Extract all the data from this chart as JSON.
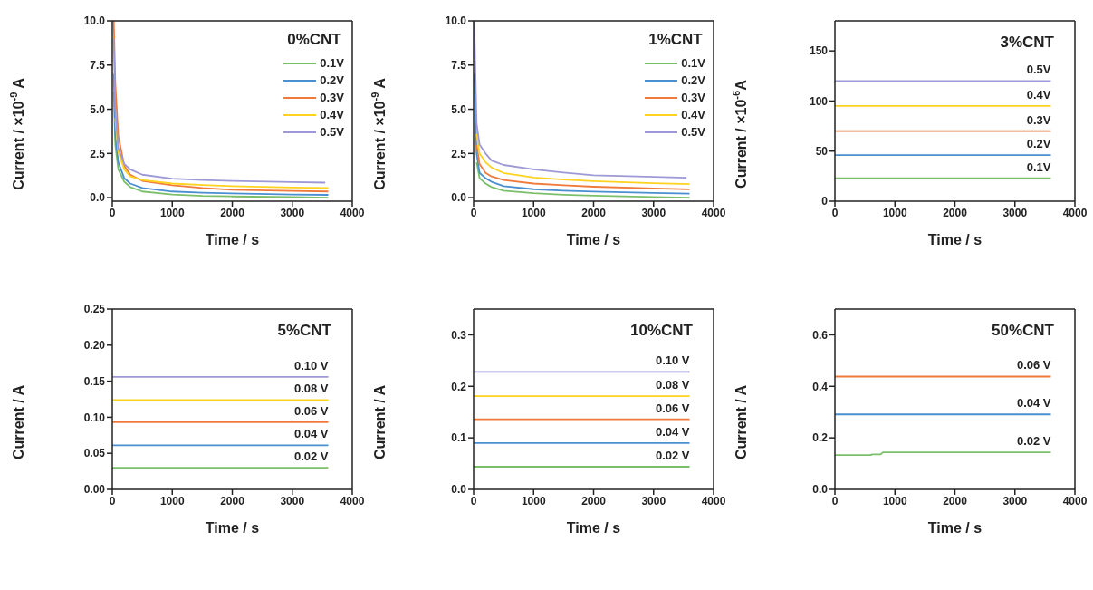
{
  "chart_data": [
    {
      "type": "line",
      "legend_title": "0%CNT",
      "xlabel": "Time / s",
      "ylabel": "Current / ×10$^{-9}$ A",
      "xlim": [
        0,
        4000
      ],
      "xticks": [
        0,
        1000,
        2000,
        3000,
        4000
      ],
      "ylim": [
        -0.2,
        10
      ],
      "yticks": [
        {
          "value": 0,
          "label": "0.0"
        },
        2.5,
        {
          "value": 5,
          "label": "5.0"
        },
        7.5,
        {
          "value": 10,
          "label": "10.0"
        }
      ],
      "grid": false,
      "legend": "top right",
      "marker": "none",
      "series": [
        {
          "name": "0.1V",
          "color": "#7cbf6a",
          "x": [
            25,
            50,
            100,
            200,
            300,
            500,
            1000,
            1500,
            2000,
            3000,
            3600
          ],
          "values": [
            6.0,
            3.0,
            1.6,
            0.9,
            0.6,
            0.35,
            0.18,
            0.1,
            0.07,
            0.03,
            0.0
          ]
        },
        {
          "name": "0.2V",
          "color": "#4a8fd0",
          "x": [
            25,
            50,
            100,
            200,
            300,
            500,
            1000,
            1500,
            2000,
            3000,
            3600
          ],
          "values": [
            7.0,
            3.5,
            2.0,
            1.1,
            0.8,
            0.55,
            0.35,
            0.28,
            0.24,
            0.18,
            0.16
          ]
        },
        {
          "name": "0.3V",
          "color": "#f07a3c",
          "x": [
            25,
            50,
            100,
            200,
            300,
            500,
            1000,
            1500,
            2000,
            3000,
            3600
          ],
          "values": [
            10.0,
            6.5,
            3.5,
            1.8,
            1.3,
            0.95,
            0.7,
            0.55,
            0.45,
            0.38,
            0.35
          ]
        },
        {
          "name": "0.4V",
          "color": "#ffd21f",
          "x": [
            50,
            100,
            200,
            300,
            500,
            1000,
            1500,
            2000,
            3000,
            3600
          ],
          "values": [
            4.5,
            2.6,
            1.6,
            1.2,
            1.0,
            0.8,
            0.72,
            0.65,
            0.58,
            0.55
          ]
        },
        {
          "name": "0.5V",
          "color": "#9d99d6",
          "x": [
            25,
            50,
            100,
            200,
            300,
            500,
            1000,
            1500,
            2000,
            3000,
            3550
          ],
          "values": [
            9.0,
            5.0,
            2.8,
            1.9,
            1.6,
            1.3,
            1.08,
            1.0,
            0.95,
            0.88,
            0.85
          ]
        }
      ]
    },
    {
      "type": "line",
      "legend_title": "1%CNT",
      "xlabel": "Time / s",
      "ylabel": "Current / ×10$^{-9}$ A",
      "xlim": [
        0,
        4000
      ],
      "xticks": [
        0,
        1000,
        2000,
        3000,
        4000
      ],
      "ylim": [
        -0.2,
        10
      ],
      "yticks": [
        {
          "value": 0,
          "label": "0.0"
        },
        2.5,
        {
          "value": 5,
          "label": "5.0"
        },
        7.5,
        {
          "value": 10,
          "label": "10.0"
        }
      ],
      "grid": false,
      "legend": "top right",
      "marker": "none",
      "series": [
        {
          "name": "0.1V",
          "color": "#7cbf6a",
          "x": [
            50,
            100,
            200,
            300,
            500,
            1000,
            1500,
            2000,
            3000,
            3600
          ],
          "values": [
            2.0,
            1.1,
            0.8,
            0.6,
            0.4,
            0.25,
            0.17,
            0.11,
            0.04,
            0.0
          ]
        },
        {
          "name": "0.2V",
          "color": "#4a8fd0",
          "x": [
            10,
            50,
            100,
            200,
            300,
            500,
            1000,
            1500,
            2000,
            3000,
            3600
          ],
          "values": [
            7.0,
            2.5,
            1.4,
            1.1,
            0.9,
            0.65,
            0.48,
            0.4,
            0.34,
            0.27,
            0.23
          ]
        },
        {
          "name": "0.3V",
          "color": "#f07a3c",
          "x": [
            50,
            100,
            200,
            300,
            500,
            1000,
            1500,
            2000,
            3000,
            3600
          ],
          "values": [
            3.0,
            1.9,
            1.4,
            1.2,
            1.0,
            0.8,
            0.7,
            0.62,
            0.52,
            0.47
          ]
        },
        {
          "name": "0.4V",
          "color": "#ffd21f",
          "x": [
            50,
            100,
            200,
            300,
            500,
            1000,
            1500,
            2000,
            3000,
            3600
          ],
          "values": [
            3.6,
            2.5,
            2.0,
            1.7,
            1.4,
            1.14,
            1.02,
            0.93,
            0.82,
            0.77
          ]
        },
        {
          "name": "0.5V",
          "color": "#9d99d6",
          "x": [
            10,
            50,
            100,
            200,
            300,
            500,
            1000,
            1500,
            2000,
            3000,
            3550
          ],
          "values": [
            10.0,
            4.2,
            3.0,
            2.5,
            2.1,
            1.85,
            1.6,
            1.42,
            1.27,
            1.18,
            1.13
          ]
        }
      ]
    },
    {
      "type": "line",
      "title": "3%CNT",
      "xlabel": "Time / s",
      "ylabel": "Current / ×10$^{-6}$A",
      "xlim": [
        0,
        4000
      ],
      "xticks": [
        0,
        1000,
        2000,
        3000,
        4000
      ],
      "ylim": [
        0,
        180
      ],
      "yticks": [
        0,
        50,
        100,
        150
      ],
      "grid": false,
      "marker": "none",
      "series": [
        {
          "name": "0.1V",
          "color": "#7cbf6a",
          "x": [
            0,
            1800,
            3600
          ],
          "values": [
            23,
            23,
            23
          ]
        },
        {
          "name": "0.2V",
          "color": "#4a8fd0",
          "x": [
            0,
            1800,
            3600
          ],
          "values": [
            46,
            46,
            46
          ]
        },
        {
          "name": "0.3V",
          "color": "#f07a3c",
          "x": [
            0,
            1800,
            3600
          ],
          "values": [
            70,
            70,
            70
          ]
        },
        {
          "name": "0.4V",
          "color": "#ffd21f",
          "x": [
            0,
            1800,
            3600
          ],
          "values": [
            95,
            95,
            95
          ]
        },
        {
          "name": "0.5V",
          "color": "#9d99d6",
          "x": [
            0,
            1800,
            3600
          ],
          "values": [
            120,
            120,
            120
          ]
        }
      ]
    },
    {
      "type": "line",
      "title": "5%CNT",
      "xlabel": "Time / s",
      "ylabel": "Current / A",
      "xlim": [
        0,
        4000
      ],
      "xticks": [
        0,
        1000,
        2000,
        3000,
        4000
      ],
      "ylim": [
        0,
        0.25
      ],
      "yticks": [
        {
          "value": 0,
          "label": "0.00"
        },
        0.05,
        {
          "value": 0.1,
          "label": "0.10"
        },
        0.15,
        {
          "value": 0.2,
          "label": "0.20"
        },
        0.25
      ],
      "grid": false,
      "marker": "none",
      "series": [
        {
          "name": "0.02 V",
          "color": "#7cbf6a",
          "x": [
            0,
            1800,
            3600
          ],
          "values": [
            0.03,
            0.03,
            0.03
          ]
        },
        {
          "name": "0.04 V",
          "color": "#4a8fd0",
          "x": [
            0,
            1800,
            3600
          ],
          "values": [
            0.061,
            0.061,
            0.061
          ]
        },
        {
          "name": "0.06 V",
          "color": "#f07a3c",
          "x": [
            0,
            1800,
            3600
          ],
          "values": [
            0.093,
            0.093,
            0.093
          ]
        },
        {
          "name": "0.08 V",
          "color": "#ffd21f",
          "x": [
            0,
            1800,
            3600
          ],
          "values": [
            0.124,
            0.124,
            0.124
          ]
        },
        {
          "name": "0.10 V",
          "color": "#9d99d6",
          "x": [
            0,
            1800,
            3600
          ],
          "values": [
            0.156,
            0.156,
            0.156
          ]
        }
      ]
    },
    {
      "type": "line",
      "title": "10%CNT",
      "xlabel": "Time / s",
      "ylabel": "Current / A",
      "xlim": [
        0,
        4000
      ],
      "xticks": [
        0,
        1000,
        2000,
        3000,
        4000
      ],
      "ylim": [
        0,
        0.35
      ],
      "yticks": [
        {
          "value": 0,
          "label": "0.0"
        },
        0.1,
        0.2,
        0.3
      ],
      "grid": false,
      "marker": "none",
      "series": [
        {
          "name": "0.02 V",
          "color": "#7cbf6a",
          "x": [
            0,
            1800,
            3600
          ],
          "values": [
            0.044,
            0.044,
            0.044
          ]
        },
        {
          "name": "0.04 V",
          "color": "#4a8fd0",
          "x": [
            0,
            1800,
            3600
          ],
          "values": [
            0.09,
            0.09,
            0.09
          ]
        },
        {
          "name": "0.06 V",
          "color": "#f07a3c",
          "x": [
            0,
            1800,
            3600
          ],
          "values": [
            0.136,
            0.136,
            0.136
          ]
        },
        {
          "name": "0.08 V",
          "color": "#ffd21f",
          "x": [
            0,
            1800,
            3600
          ],
          "values": [
            0.181,
            0.181,
            0.181
          ]
        },
        {
          "name": "0.10 V",
          "color": "#9d99d6",
          "x": [
            0,
            1800,
            3600
          ],
          "values": [
            0.228,
            0.228,
            0.228
          ]
        }
      ]
    },
    {
      "type": "line",
      "title": "50%CNT",
      "xlabel": "Time / s",
      "ylabel": "Current / A",
      "xlim": [
        0,
        4000
      ],
      "xticks": [
        0,
        1000,
        2000,
        3000,
        4000
      ],
      "ylim": [
        0,
        0.7
      ],
      "yticks": [
        {
          "value": 0,
          "label": "0.0"
        },
        0.2,
        0.4,
        0.6
      ],
      "grid": false,
      "marker": "none",
      "series": [
        {
          "name": "0.02 V",
          "color": "#7cbf6a",
          "x": [
            0,
            600,
            620,
            760,
            800,
            2000,
            3600
          ],
          "values": [
            0.133,
            0.133,
            0.136,
            0.136,
            0.144,
            0.144,
            0.144
          ]
        },
        {
          "name": "0.04 V",
          "color": "#4a8fd0",
          "x": [
            0,
            1800,
            3600
          ],
          "values": [
            0.291,
            0.291,
            0.291
          ]
        },
        {
          "name": "0.06 V",
          "color": "#f07a3c",
          "x": [
            0,
            1800,
            3600
          ],
          "values": [
            0.438,
            0.438,
            0.438
          ]
        }
      ]
    }
  ]
}
